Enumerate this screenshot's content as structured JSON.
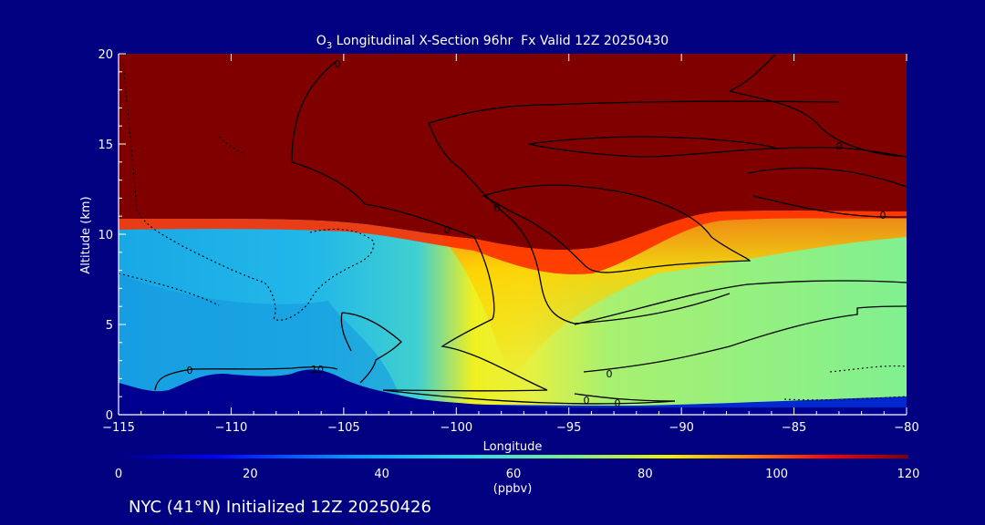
{
  "chart_data": {
    "type": "heatmap",
    "title_main": "O",
    "title_sub": "3",
    "title_rest": " Longitudinal X-Section 96hr  Fx Valid 12Z 20250430",
    "xlabel": "Longitude",
    "ylabel": "Altitude (km)",
    "xlim": [
      -115,
      -80
    ],
    "ylim": [
      0,
      20
    ],
    "x_ticks": [
      "−115",
      "−110",
      "−105",
      "−100",
      "−95",
      "−90",
      "−85",
      "−80"
    ],
    "x_tick_values": [
      -115,
      -110,
      -105,
      -100,
      -95,
      -90,
      -85,
      -80
    ],
    "y_ticks": [
      "0",
      "5",
      "10",
      "15",
      "20"
    ],
    "y_tick_values": [
      0,
      5,
      10,
      15,
      20
    ],
    "colorbar": {
      "min": 0,
      "max": 120,
      "ticks": [
        "0",
        "20",
        "40",
        "60",
        "80",
        "100",
        "120"
      ],
      "tick_values": [
        0,
        20,
        40,
        60,
        80,
        100,
        120
      ],
      "units": "(ppbv)"
    },
    "contour_labels": [
      "0",
      "0",
      "10",
      "0",
      "0",
      "0",
      "0",
      "0",
      "0",
      "0"
    ],
    "colors": {
      "background": "#000080",
      "stratosphere": "#800000",
      "terrain": "#000090",
      "contour": "#000000"
    }
  },
  "footer": "NYC (41°N) Initialized 12Z 20250426"
}
